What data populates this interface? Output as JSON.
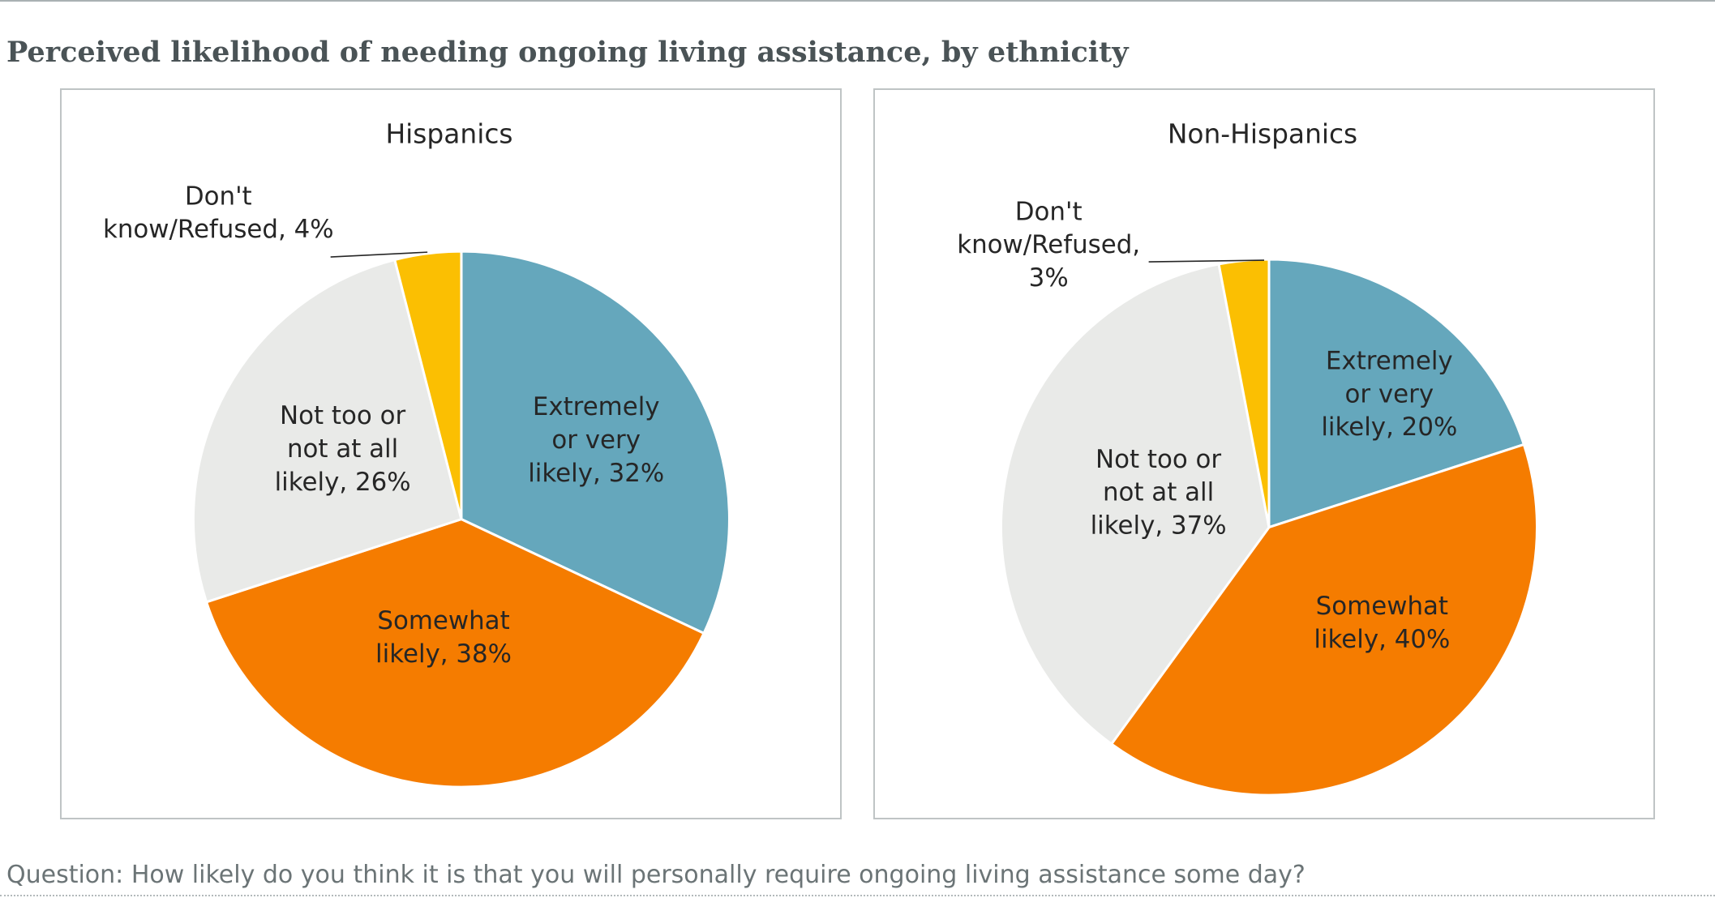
{
  "title": "Perceived likelihood of needing ongoing living assistance, by ethnicity",
  "question": "Question: How likely do you think it is that you will personally require ongoing living assistance some day?",
  "colors": {
    "extremely_or_very": "#65a7bc",
    "somewhat": "#f57c00",
    "not_too_or_not_at_all": "#e9eae8",
    "dont_know_refused": "#fbbf02",
    "title_text": "#4a5356",
    "question_text": "#6b7476",
    "panel_border": "#bfc4c5"
  },
  "chart_data": [
    {
      "type": "pie",
      "title": "Hispanics",
      "categories": [
        "Extremely or very likely",
        "Somewhat likely",
        "Not too or not at all likely",
        "Don't know/Refused"
      ],
      "values": [
        32,
        38,
        26,
        4
      ],
      "unit": "%",
      "labels": [
        [
          "Extremely",
          "or very",
          "likely, 32%"
        ],
        [
          "Somewhat",
          "likely, 38%"
        ],
        [
          "Not too or",
          "not at all",
          "likely, 26%"
        ],
        [
          "Don't",
          "know/Refused, 4%"
        ]
      ],
      "legend": "none"
    },
    {
      "type": "pie",
      "title": "Non-Hispanics",
      "categories": [
        "Extremely or very likely",
        "Somewhat likely",
        "Not too or not at all likely",
        "Don't know/Refused"
      ],
      "values": [
        20,
        40,
        37,
        3
      ],
      "unit": "%",
      "labels": [
        [
          "Extremely",
          "or very",
          "likely, 20%"
        ],
        [
          "Somewhat",
          "likely, 40%"
        ],
        [
          "Not too or",
          "not at all",
          "likely, 37%"
        ],
        [
          "Don't",
          "know/Refused,",
          "3%"
        ]
      ],
      "legend": "none"
    }
  ]
}
